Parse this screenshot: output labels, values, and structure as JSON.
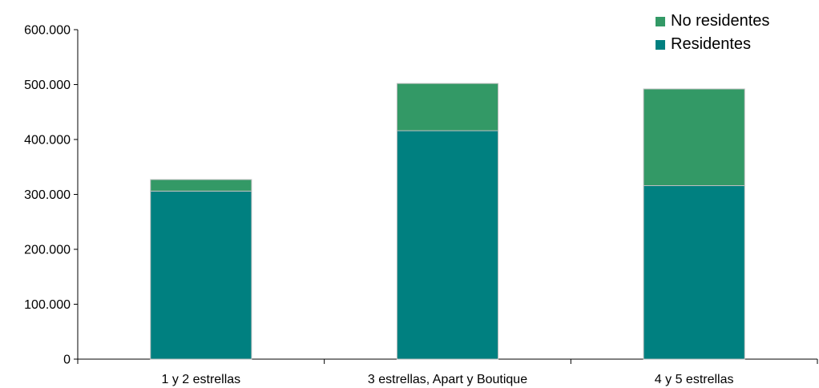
{
  "chart_data": {
    "type": "bar",
    "stacked": true,
    "categories": [
      "1 y 2 estrellas",
      "3 estrellas, Apart y Boutique",
      "4 y 5 estrellas"
    ],
    "series": [
      {
        "name": "Residentes",
        "values": [
          306000,
          416000,
          316000
        ],
        "color": "#008080"
      },
      {
        "name": "No residentes",
        "values": [
          21000,
          86000,
          176000
        ],
        "color": "#339966"
      }
    ],
    "y_ticks": [
      "0",
      "100.000",
      "200.000",
      "300.000",
      "400.000",
      "500.000",
      "600.000"
    ],
    "ylim": [
      0,
      600000
    ],
    "grid": false,
    "legend_position": "top-right",
    "title": "",
    "xlabel": "",
    "ylabel": ""
  }
}
